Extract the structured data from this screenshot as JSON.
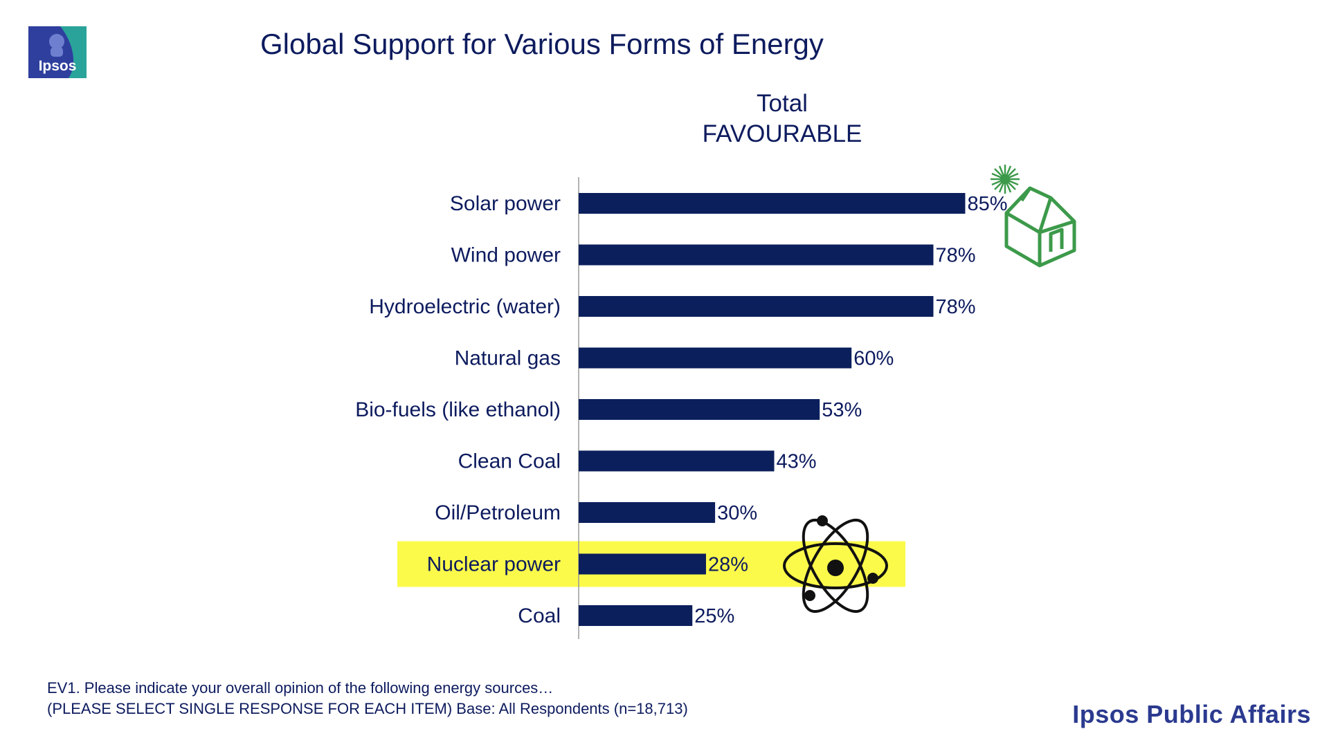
{
  "header": {
    "logo_text": "Ipsos",
    "title": "Global Support for Various Forms of Energy",
    "column_header_line1": "Total",
    "column_header_line2": "FAVOURABLE"
  },
  "footer": {
    "question_line1": "EV1. Please indicate your overall opinion of the following energy sources…",
    "question_line2": "(PLEASE SELECT SINGLE RESPONSE FOR EACH ITEM)  Base: All Respondents (n=18,713)",
    "brand": "Ipsos Public Affairs"
  },
  "colors": {
    "bar": "#0b1f5c",
    "highlight": "#fbfa4a",
    "title_text": "#0d1b5e",
    "green_icon": "#3c9a4a",
    "logo_blue": "#2f3f9e",
    "logo_teal": "#2aa39a"
  },
  "icons": {
    "solar_house": "green-house-sun-icon",
    "nuclear": "atom-icon"
  },
  "chart_data": {
    "type": "bar",
    "orientation": "horizontal",
    "categories": [
      "Solar power",
      "Wind power",
      "Hydroelectric (water)",
      "Natural gas",
      "Bio-fuels (like ethanol)",
      "Clean Coal",
      "Oil/Petroleum",
      "Nuclear power",
      "Coal"
    ],
    "values": [
      85,
      78,
      78,
      60,
      53,
      43,
      30,
      28,
      25
    ],
    "value_labels": [
      "85%",
      "78%",
      "78%",
      "60%",
      "53%",
      "43%",
      "30%",
      "28%",
      "25%"
    ],
    "highlighted_category": "Nuclear power",
    "xlim": [
      0,
      100
    ],
    "grid": false,
    "legend": "none"
  }
}
